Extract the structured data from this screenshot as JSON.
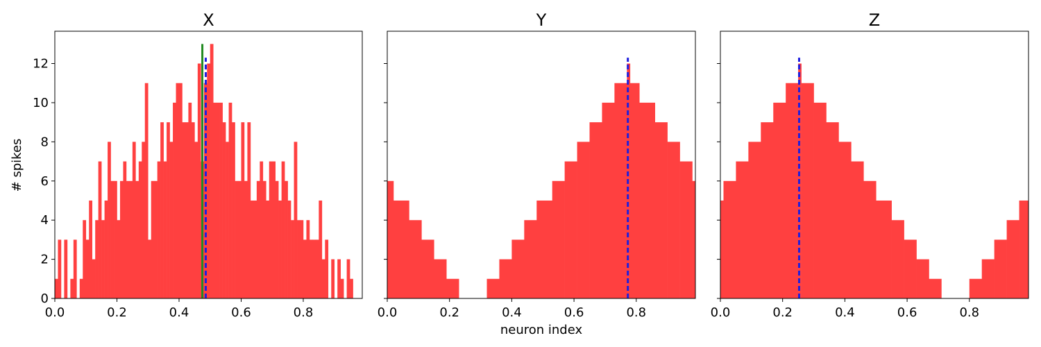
{
  "ylabel": "# spikes",
  "xlabel": "neuron index",
  "chart_data": [
    {
      "type": "histogram",
      "title": "X",
      "xlim": [
        0,
        0.99
      ],
      "ylim": [
        0,
        13.65
      ],
      "xticks": [
        "0.0",
        "0.2",
        "0.4",
        "0.6",
        "0.8"
      ],
      "yticks": [
        "0",
        "2",
        "4",
        "6",
        "8",
        "10",
        "12"
      ],
      "bar_color": "#ff4040",
      "bin_width": 0.01,
      "values": [
        1,
        3,
        0,
        3,
        0,
        1,
        3,
        0,
        1,
        4,
        3,
        5,
        2,
        4,
        7,
        4,
        5,
        8,
        6,
        6,
        4,
        6,
        7,
        6,
        6,
        8,
        6,
        7,
        8,
        11,
        3,
        6,
        6,
        7,
        9,
        7,
        9,
        8,
        10,
        11,
        11,
        9,
        9,
        10,
        9,
        8,
        12,
        7,
        11,
        12,
        13,
        10,
        10,
        10,
        9,
        8,
        10,
        9,
        6,
        6,
        9,
        6,
        9,
        5,
        5,
        6,
        7,
        6,
        5,
        7,
        7,
        6,
        5,
        7,
        6,
        5,
        4,
        8,
        4,
        4,
        3,
        4,
        3,
        3,
        3,
        5,
        2,
        3,
        0,
        2,
        0,
        2,
        1,
        0,
        2,
        1,
        0,
        0,
        0,
        2
      ],
      "lines": [
        {
          "x": 0.475,
          "top": 13.0,
          "color": "#228b22",
          "style": "solid"
        },
        {
          "x": 0.486,
          "top": 12.3,
          "color": "#1f1fdf",
          "style": "dashed"
        }
      ]
    },
    {
      "type": "histogram",
      "title": "Y",
      "xlim": [
        0,
        0.99
      ],
      "ylim": [
        0,
        13.65
      ],
      "xticks": [
        "0.0",
        "0.2",
        "0.4",
        "0.6",
        "0.8"
      ],
      "yticks": [],
      "bar_color": "#ff4040",
      "bin_width": 0.04125,
      "values": [
        6,
        5,
        4,
        3,
        2,
        1,
        0,
        1,
        2,
        3,
        4,
        5,
        6,
        7,
        8,
        9,
        10,
        11,
        12,
        11,
        10,
        9,
        8,
        7,
        6
      ],
      "bin_edges": [
        0,
        0.02,
        0.07,
        0.11,
        0.15,
        0.19,
        0.23,
        0.32,
        0.36,
        0.4,
        0.44,
        0.48,
        0.53,
        0.57,
        0.61,
        0.65,
        0.69,
        0.73,
        0.77,
        0.78,
        0.81,
        0.86,
        0.9,
        0.94,
        0.98,
        0.99
      ],
      "lines": [
        {
          "x": 0.773,
          "top": 12.3,
          "color": "#1f1fdf",
          "style": "dashed"
        }
      ]
    },
    {
      "type": "histogram",
      "title": "Z",
      "xlim": [
        0,
        0.99
      ],
      "ylim": [
        0,
        13.65
      ],
      "xticks": [
        "0.0",
        "0.2",
        "0.4",
        "0.6",
        "0.8"
      ],
      "yticks": [],
      "bar_color": "#ff4040",
      "values": [
        5,
        6,
        7,
        8,
        9,
        10,
        11,
        12,
        11,
        10,
        9,
        8,
        7,
        6,
        5,
        4,
        3,
        2,
        1,
        0,
        1,
        2,
        3,
        4,
        5
      ],
      "bin_edges": [
        0,
        0.01,
        0.05,
        0.09,
        0.13,
        0.17,
        0.21,
        0.25,
        0.26,
        0.3,
        0.34,
        0.38,
        0.42,
        0.46,
        0.5,
        0.55,
        0.59,
        0.63,
        0.67,
        0.71,
        0.8,
        0.84,
        0.88,
        0.92,
        0.96,
        0.99
      ],
      "lines": [
        {
          "x": 0.253,
          "top": 12.3,
          "color": "#1f1fdf",
          "style": "dashed"
        }
      ]
    }
  ]
}
